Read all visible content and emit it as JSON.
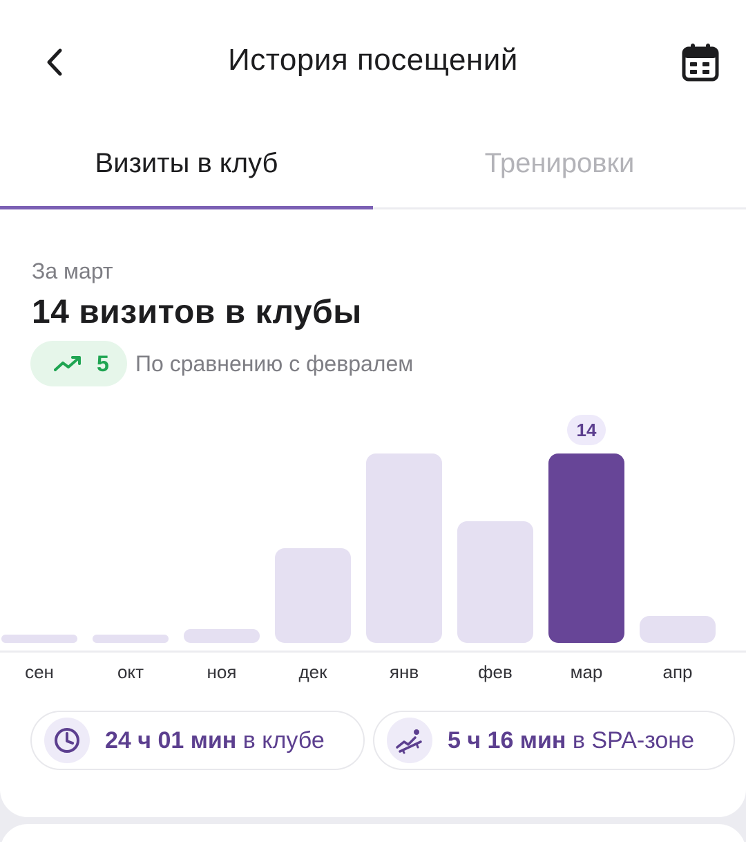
{
  "header": {
    "title": "История посещений",
    "back_icon": "chevron-left-icon",
    "calendar_icon": "calendar-icon"
  },
  "tabs": [
    {
      "label": "Визиты в клуб",
      "active": true
    },
    {
      "label": "Тренировки",
      "active": false
    }
  ],
  "summary": {
    "period": "За март",
    "headline": "14 визитов в клубы",
    "trend_icon": "trending-up-icon",
    "trend_value": "5",
    "trend_text": "По сравнению с февралем"
  },
  "colors": {
    "accent": "#674597",
    "bar_inactive": "#e5e0f2",
    "trend_green": "#1fa552",
    "tab_underline": "#7b60b4"
  },
  "chart_data": {
    "type": "bar",
    "categories": [
      "сен",
      "окт",
      "ноя",
      "дек",
      "янв",
      "фев",
      "мар",
      "апр"
    ],
    "values": [
      0,
      0,
      1,
      7,
      14,
      9,
      14,
      2
    ],
    "highlight_index": 6,
    "highlight_label": "14",
    "ylim": [
      0,
      14
    ],
    "grid": false
  },
  "stats": {
    "club_time_icon": "clock-icon",
    "club_time_value": "24 ч 01 мин",
    "club_time_suffix": " в клубе",
    "spa_time_icon": "spa-lounger-icon",
    "spa_time_value": "5 ч 16 мин",
    "spa_time_suffix": " в SPA-зоне"
  }
}
